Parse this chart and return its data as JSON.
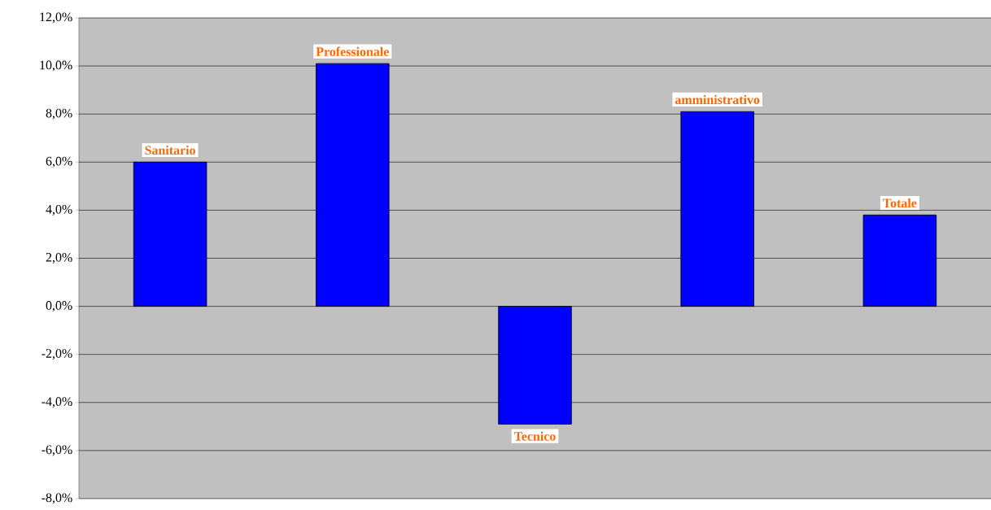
{
  "chart_data": {
    "type": "bar",
    "categories": [
      "Sanitario",
      "Professionale",
      "Tecnico",
      "amministrativo",
      "Totale"
    ],
    "values": [
      6.0,
      10.1,
      -4.9,
      8.1,
      3.8
    ],
    "color": "#0000ff",
    "ylim": [
      -8,
      12
    ],
    "yticks": [
      {
        "value": -8,
        "label": "-8,0%"
      },
      {
        "value": -6,
        "label": "-6,0%"
      },
      {
        "value": -4,
        "label": "-4,0%"
      },
      {
        "value": -2,
        "label": "-2,0%"
      },
      {
        "value": 0,
        "label": "0,0%"
      },
      {
        "value": 2,
        "label": "2,0%"
      },
      {
        "value": 4,
        "label": "4,0%"
      },
      {
        "value": 6,
        "label": "6,0%"
      },
      {
        "value": 8,
        "label": "8,0%"
      },
      {
        "value": 10,
        "label": "10,0%"
      },
      {
        "value": 12,
        "label": "12,0%"
      }
    ],
    "grid": "y"
  }
}
